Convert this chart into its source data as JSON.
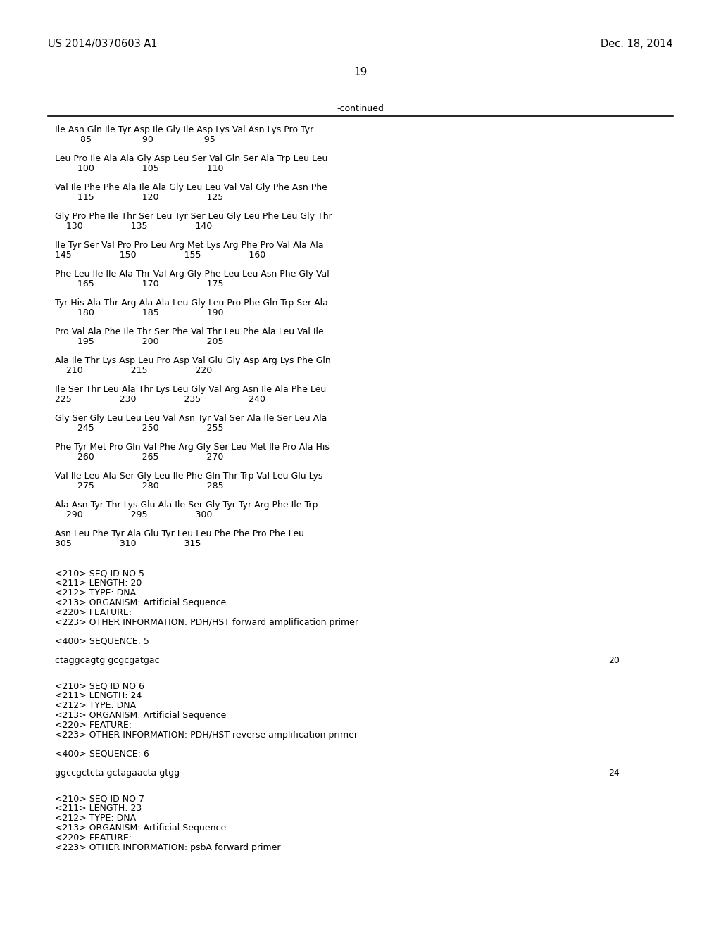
{
  "bg_color": "#ffffff",
  "header_left": "US 2014/0370603 A1",
  "header_right": "Dec. 18, 2014",
  "page_number": "19",
  "continued_label": "-continued",
  "body_font_size": 9.0,
  "header_font_size": 10.5,
  "seq_blocks": [
    [
      "Ile Asn Gln Ile Tyr Asp Ile Gly Ile Asp Lys Val Asn Lys Pro Tyr",
      "         85                  90                  95"
    ],
    [
      "Leu Pro Ile Ala Ala Gly Asp Leu Ser Val Gln Ser Ala Trp Leu Leu",
      "        100                 105                 110"
    ],
    [
      "Val Ile Phe Phe Ala Ile Ala Gly Leu Leu Val Val Gly Phe Asn Phe",
      "        115                 120                 125"
    ],
    [
      "Gly Pro Phe Ile Thr Ser Leu Tyr Ser Leu Gly Leu Phe Leu Gly Thr",
      "    130                 135                 140"
    ],
    [
      "Ile Tyr Ser Val Pro Pro Leu Arg Met Lys Arg Phe Pro Val Ala Ala",
      "145                 150                 155                 160"
    ],
    [
      "Phe Leu Ile Ile Ala Thr Val Arg Gly Phe Leu Leu Asn Phe Gly Val",
      "        165                 170                 175"
    ],
    [
      "Tyr His Ala Thr Arg Ala Ala Leu Gly Leu Pro Phe Gln Trp Ser Ala",
      "        180                 185                 190"
    ],
    [
      "Pro Val Ala Phe Ile Thr Ser Phe Val Thr Leu Phe Ala Leu Val Ile",
      "        195                 200                 205"
    ],
    [
      "Ala Ile Thr Lys Asp Leu Pro Asp Val Glu Gly Asp Arg Lys Phe Gln",
      "    210                 215                 220"
    ],
    [
      "Ile Ser Thr Leu Ala Thr Lys Leu Gly Val Arg Asn Ile Ala Phe Leu",
      "225                 230                 235                 240"
    ],
    [
      "Gly Ser Gly Leu Leu Leu Val Asn Tyr Val Ser Ala Ile Ser Leu Ala",
      "        245                 250                 255"
    ],
    [
      "Phe Tyr Met Pro Gln Val Phe Arg Gly Ser Leu Met Ile Pro Ala His",
      "        260                 265                 270"
    ],
    [
      "Val Ile Leu Ala Ser Gly Leu Ile Phe Gln Thr Trp Val Leu Glu Lys",
      "        275                 280                 285"
    ],
    [
      "Ala Asn Tyr Thr Lys Glu Ala Ile Ser Gly Tyr Tyr Arg Phe Ile Trp",
      "    290                 295                 300"
    ],
    [
      "Asn Leu Phe Tyr Ala Glu Tyr Leu Leu Phe Phe Pro Phe Leu",
      "305                 310                 315"
    ]
  ],
  "meta5": [
    "<210> SEQ ID NO 5",
    "<211> LENGTH: 20",
    "<212> TYPE: DNA",
    "<213> ORGANISM: Artificial Sequence",
    "<220> FEATURE:",
    "<223> OTHER INFORMATION: PDH/HST forward amplification primer"
  ],
  "seq5_text": "ctaggcagtg gcgcgatgac",
  "seq5_num": "20",
  "meta6": [
    "<210> SEQ ID NO 6",
    "<211> LENGTH: 24",
    "<212> TYPE: DNA",
    "<213> ORGANISM: Artificial Sequence",
    "<220> FEATURE:",
    "<223> OTHER INFORMATION: PDH/HST reverse amplification primer"
  ],
  "seq6_text": "ggccgctcta gctagaacta gtgg",
  "seq6_num": "24",
  "meta7": [
    "<210> SEQ ID NO 7",
    "<211> LENGTH: 23",
    "<212> TYPE: DNA",
    "<213> ORGANISM: Artificial Sequence",
    "<220> FEATURE:",
    "<223> OTHER INFORMATION: psbA forward primer"
  ]
}
